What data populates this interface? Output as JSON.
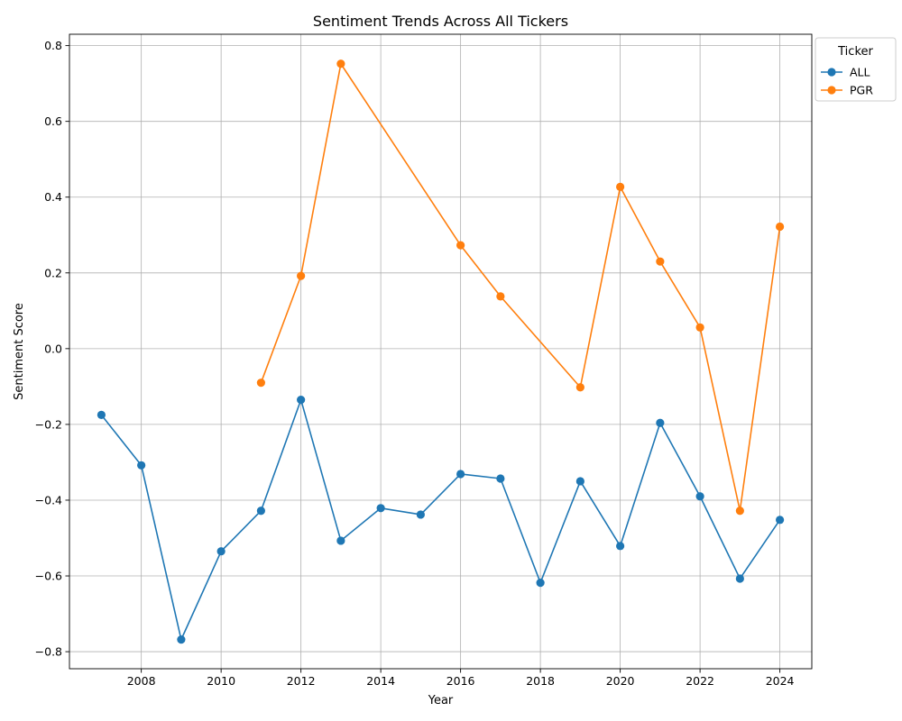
{
  "chart_data": {
    "type": "line",
    "title": "Sentiment Trends Across All Tickers",
    "xlabel": "Year",
    "ylabel": "Sentiment Score",
    "xlim": [
      2006.2,
      2024.8
    ],
    "ylim": [
      -0.845,
      0.83
    ],
    "x_ticks": [
      2008,
      2010,
      2012,
      2014,
      2016,
      2018,
      2020,
      2022,
      2024
    ],
    "x_tick_labels": [
      "2008",
      "2010",
      "2012",
      "2014",
      "2016",
      "2018",
      "2020",
      "2022",
      "2024"
    ],
    "y_ticks": [
      -0.8,
      -0.6,
      -0.4,
      -0.2,
      0.0,
      0.2,
      0.4,
      0.6,
      0.8
    ],
    "y_tick_labels": [
      "−0.8",
      "−0.6",
      "−0.4",
      "−0.2",
      "0.0",
      "0.2",
      "0.4",
      "0.6",
      "0.8"
    ],
    "grid": true,
    "legend": {
      "title": "Ticker",
      "placement": "outside-top-right"
    },
    "series": [
      {
        "name": "ALL",
        "color": "#1f77b4",
        "x": [
          2007,
          2008,
          2009,
          2010,
          2011,
          2012,
          2013,
          2014,
          2015,
          2016,
          2017,
          2018,
          2019,
          2020,
          2021,
          2022,
          2023,
          2024
        ],
        "y": [
          -0.175,
          -0.308,
          -0.768,
          -0.535,
          -0.428,
          -0.135,
          -0.507,
          -0.421,
          -0.438,
          -0.331,
          -0.343,
          -0.618,
          -0.35,
          -0.521,
          -0.196,
          -0.39,
          -0.607,
          -0.452
        ]
      },
      {
        "name": "PGR",
        "color": "#ff7f0e",
        "x": [
          2011,
          2012,
          2013,
          2016,
          2017,
          2019,
          2020,
          2021,
          2022,
          2023,
          2024
        ],
        "y": [
          -0.09,
          0.192,
          0.752,
          0.273,
          0.138,
          -0.102,
          0.427,
          0.23,
          0.056,
          -0.428,
          0.322
        ]
      }
    ]
  }
}
